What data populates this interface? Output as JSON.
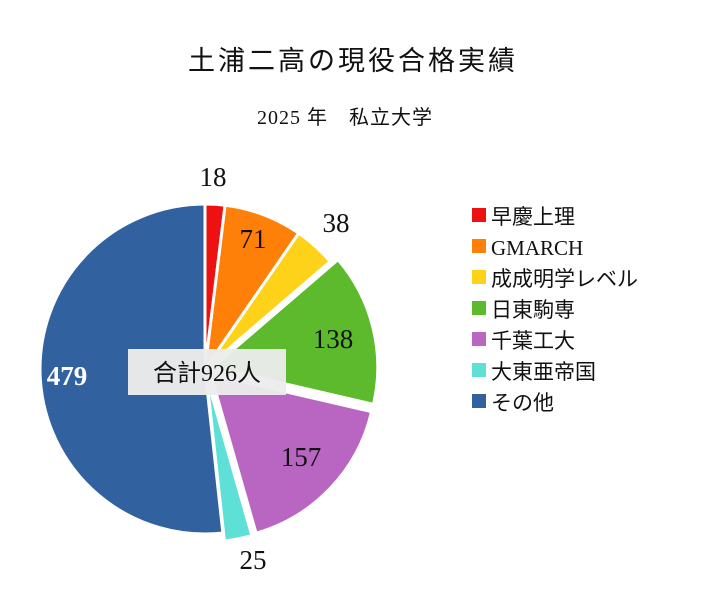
{
  "chart_data": {
    "type": "pie",
    "title": "土浦二高の現役合格実績",
    "subtitle": "2025 年　私立大学",
    "center_label": "合計926人",
    "total": 926,
    "start": "12 o'clock",
    "direction": "clockwise",
    "legend_position": "right",
    "slices": [
      {
        "label": "早慶上理",
        "value": 18,
        "color": "#ee1111",
        "value_text": "18"
      },
      {
        "label": "GMARCH",
        "value": 71,
        "color": "#ff8008",
        "value_text": "71"
      },
      {
        "label": "成成明学レベル",
        "value": 38,
        "color": "#ffd21a",
        "value_text": "38"
      },
      {
        "label": "日東駒専",
        "value": 138,
        "color": "#5cba2c",
        "value_text": "138"
      },
      {
        "label": "千葉工大",
        "value": 157,
        "color": "#b866c2",
        "value_text": "157"
      },
      {
        "label": "大東亜帝国",
        "value": 25,
        "color": "#5ee0d6",
        "value_text": "25"
      },
      {
        "label": "その他",
        "value": 479,
        "color": "#31619e",
        "value_text": "479"
      }
    ]
  }
}
